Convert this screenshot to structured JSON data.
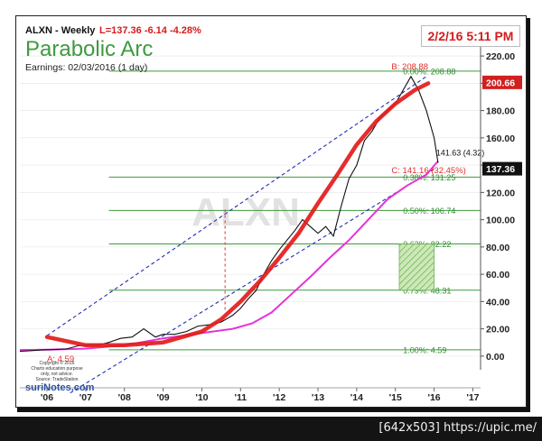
{
  "header": {
    "ticker_label": "ALXN - Weekly",
    "quote": "L=137.36  -6.14  -4.28%",
    "title": "Parabolic Arc",
    "earnings": "Earnings: 02/03/2016 (1 day)",
    "date_box": "2/2/16 5:11 PM",
    "watermark": "ALXN"
  },
  "price_tags": {
    "upper": "200.66",
    "last": "137.36",
    "close_label": "141.63 (4.32)"
  },
  "logo": {
    "line1": "Copyright © 2016",
    "line2": "Charts education purpose",
    "line3": "only, not advice.",
    "line4": "Source: TradeStation",
    "brand": "suriNotes.com"
  },
  "footer": {
    "text": "[642x503] https://upic.me/"
  },
  "colors": {
    "price": "#111111",
    "arc": "#e31b1b",
    "moving_average": "#e632d9",
    "channel": "#1f2fb6",
    "fib": "#3f9a3f",
    "fib_text": "#2e8b2e",
    "annotation": "#e03030"
  },
  "chart_data": {
    "type": "line",
    "x_tick_labels": [
      "'06",
      "'07",
      "'08",
      "'09",
      "'10",
      "'11",
      "'12",
      "'13",
      "'14",
      "'15",
      "'16",
      "'17"
    ],
    "x_tick_pos": [
      2006,
      2007,
      2008,
      2009,
      2010,
      2011,
      2012,
      2013,
      2014,
      2015,
      2016,
      2017
    ],
    "xlim": [
      2005.3,
      2017.2
    ],
    "ylim": [
      -10,
      228
    ],
    "y_ticks": [
      0,
      20,
      40,
      60,
      80,
      100,
      120,
      140,
      160,
      180,
      200,
      220
    ],
    "y_tick_labels": [
      "0.00",
      "20.00",
      "40.00",
      "60.00",
      "80.00",
      "100.00",
      "120.00",
      "140.00",
      "160.00",
      "180.00",
      "200.00",
      "220.00"
    ],
    "series": [
      {
        "kind": "price",
        "x": [
          2005.3,
          2005.6,
          2005.9,
          2006.2,
          2006.5,
          2006.8,
          2007.0,
          2007.3,
          2007.6,
          2007.9,
          2008.2,
          2008.5,
          2008.8,
          2009.0,
          2009.3,
          2009.6,
          2009.9,
          2010.2,
          2010.5,
          2010.8,
          2011.0,
          2011.2,
          2011.4,
          2011.6,
          2011.8,
          2012.0,
          2012.2,
          2012.4,
          2012.6,
          2012.8,
          2013.0,
          2013.2,
          2013.4,
          2013.6,
          2013.8,
          2014.0,
          2014.2,
          2014.4,
          2014.6,
          2014.8,
          2015.0,
          2015.2,
          2015.4,
          2015.6,
          2015.8,
          2016.0,
          2016.1
        ],
        "y": [
          3.5,
          4,
          4.6,
          4.8,
          5.2,
          7.5,
          8,
          8,
          10,
          13,
          14,
          20,
          14,
          16,
          16,
          18,
          22,
          23,
          25,
          30,
          35,
          42,
          48,
          60,
          70,
          78,
          85,
          92,
          100,
          95,
          90,
          95,
          88,
          110,
          130,
          140,
          158,
          165,
          175,
          180,
          185,
          195,
          205,
          195,
          180,
          160,
          141.63
        ]
      },
      {
        "name": "",
        "kind": "moving_average",
        "x": [
          2005.3,
          2006.0,
          2007.0,
          2008.0,
          2009.0,
          2010.0,
          2010.8,
          2011.3,
          2011.8,
          2012.3,
          2012.8,
          2013.3,
          2013.8,
          2014.3,
          2014.8,
          2015.3,
          2015.8,
          2016.1
        ],
        "y": [
          4.5,
          4.7,
          5.5,
          8.0,
          13.0,
          17.0,
          20.0,
          24.0,
          32.0,
          45.0,
          58.0,
          72.0,
          85.0,
          100.0,
          115.0,
          125.0,
          133.0,
          143.0
        ]
      },
      {
        "kind": "parabolic_arc",
        "x": [
          2006.0,
          2007.0,
          2008.0,
          2009.0,
          2010.0,
          2010.5,
          2011.0,
          2011.5,
          2012.0,
          2012.5,
          2013.0,
          2013.5,
          2014.0,
          2014.5,
          2015.0,
          2015.5,
          2015.85
        ],
        "y": [
          14.0,
          8.0,
          8.0,
          10.0,
          18.0,
          27.0,
          40.0,
          55.0,
          72.0,
          90.0,
          112.0,
          133.0,
          155.0,
          172.0,
          185.0,
          195.0,
          200.0
        ]
      }
    ],
    "channel_lines": [
      {
        "x": [
          2006.0,
          2015.8
        ],
        "y": [
          15.0,
          205.0
        ]
      },
      {
        "x": [
          2006.6,
          2016.0
        ],
        "y": [
          -27.0,
          137.0
        ]
      }
    ],
    "marker_line": {
      "x": 2010.6,
      "y": [
        34.0,
        108.0
      ]
    },
    "fib_levels": [
      {
        "value": 208.88,
        "label": "0.00%: 208.88"
      },
      {
        "value": 131.25,
        "label": "0.38%: 131.25"
      },
      {
        "value": 106.74,
        "label": "0.50%: 106.74"
      },
      {
        "value": 82.22,
        "label": "0.62%: 82.22"
      },
      {
        "value": 48.31,
        "label": "0.79%: 48.31"
      },
      {
        "value": 4.59,
        "label": "1.00%: 4.59"
      }
    ],
    "target_zone": {
      "x": [
        2015.1,
        2016.0
      ],
      "y": [
        48.31,
        82.22
      ]
    },
    "annotations": [
      {
        "text": "B: 208.88",
        "x": 2014.9,
        "y": 210.0
      },
      {
        "text": "A: 4.59",
        "x": 2006.0,
        "y": -4.0
      },
      {
        "text": "C: 141.16 (32.45%)",
        "x": 2014.9,
        "y": 134.0
      }
    ],
    "current_price": 137.36,
    "upper_tag_value": 200.66
  }
}
